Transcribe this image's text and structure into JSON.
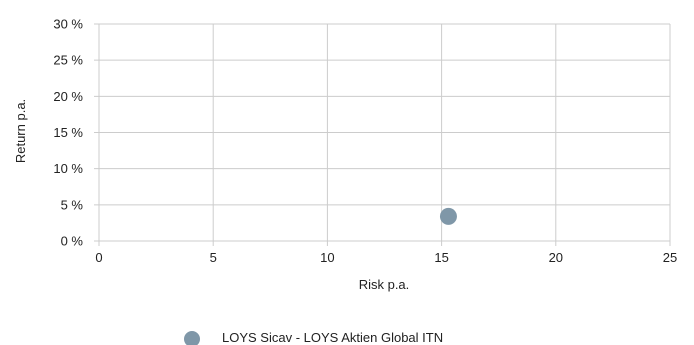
{
  "chart_data": {
    "type": "scatter",
    "xlabel": "Risk p.a.",
    "ylabel": "Return p.a.",
    "xlim": [
      0,
      25
    ],
    "ylim": [
      0,
      30
    ],
    "x_ticks": [
      0,
      5,
      10,
      15,
      20,
      25
    ],
    "x_tick_labels": [
      "0",
      "5",
      "10",
      "15",
      "20",
      "25"
    ],
    "y_ticks": [
      0,
      5,
      10,
      15,
      20,
      25,
      30
    ],
    "y_tick_labels": [
      "0 %",
      "5 %",
      "10 %",
      "15 %",
      "20 %",
      "25 %",
      "30 %"
    ],
    "grid": true,
    "legend_position": "bottom",
    "series": [
      {
        "name": "LOYS Sicav - LOYS Aktien Global ITN",
        "color": "#7f97a8",
        "points": [
          {
            "x": 15.3,
            "y": 3.4
          }
        ]
      }
    ]
  }
}
